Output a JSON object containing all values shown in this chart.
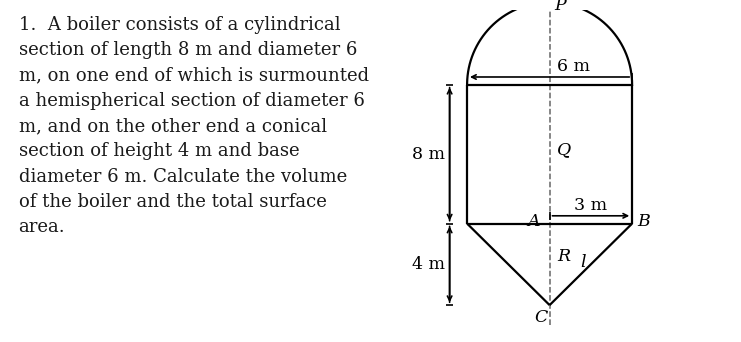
{
  "text_content": "1.  A boiler consists of a cylindrical\nsection of length 8 m and diameter 6\nm, on one end of which is surmounted\na hemispherical section of diameter 6\nm, and on the other end a conical\nsection of height 4 m and base\ndiameter 6 m. Calculate the volume\nof the boiler and the total surface\narea.",
  "label_P": "P",
  "label_Q": "Q",
  "label_A": "A",
  "label_B": "B",
  "label_C": "C",
  "label_R": "R",
  "label_l": "l",
  "label_6m": "6 m",
  "label_8m": "8 m",
  "label_4m": "4 m",
  "label_3m": "3 m",
  "bg_color": "#ffffff",
  "line_color": "#000000",
  "dashed_color": "#666666",
  "text_color": "#1a1a1a",
  "fontsize_main": 13.0,
  "fontsize_label": 12.5,
  "fontsize_dim": 12.5
}
